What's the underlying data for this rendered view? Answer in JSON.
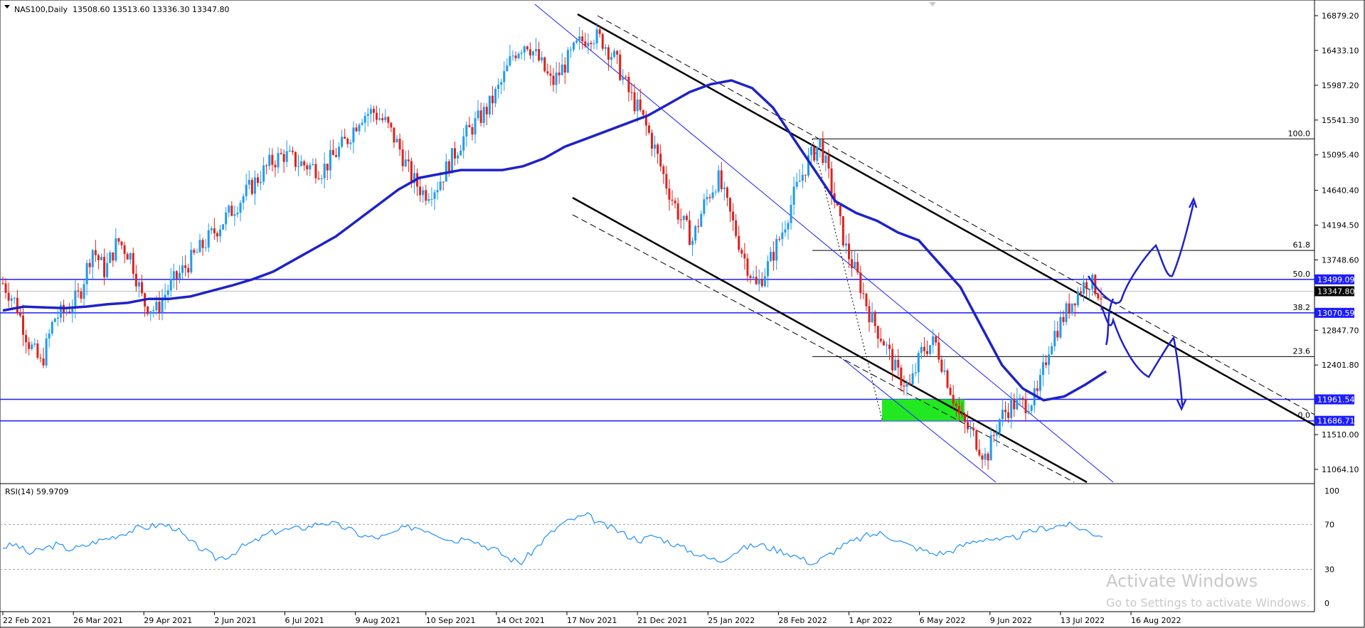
{
  "header": {
    "symbol": "NAS100,Daily",
    "ohlc": "13508.60 13513.60 13336.30 13347.80",
    "indicator": "RSI(14) 59.9709"
  },
  "colors": {
    "bull": "#1e9bf0",
    "bear": "#e0211c",
    "ma": "#1e22c8",
    "hline": "#1c1cff",
    "zone": "#22e822",
    "rsi": "#1e90ff",
    "channel": "#000000",
    "fib": "#000000",
    "drawing": "#1e22c8"
  },
  "watermark": {
    "title": "Activate Windows",
    "subtitle": "Go to Settings to activate Windows."
  },
  "chart_data": {
    "type": "candlestick",
    "price_axis": {
      "ticks": [
        "16879.20",
        "16433.10",
        "15987.20",
        "15541.30",
        "15095.40",
        "14640.40",
        "14194.50",
        "13748.60",
        "12847.70",
        "12401.80",
        "11510.00",
        "11064.10"
      ],
      "ylim": [
        10800,
        17000
      ]
    },
    "time_axis": {
      "ticks": [
        "22 Feb 2021",
        "26 Mar 2021",
        "29 Apr 2021",
        "2 Jun 2021",
        "6 Jul 2021",
        "9 Aug 2021",
        "10 Sep 2021",
        "14 Oct 2021",
        "17 Nov 2021",
        "21 Dec 2021",
        "25 Jan 2022",
        "28 Feb 2022",
        "1 Apr 2022",
        "6 May 2022",
        "9 Jun 2022",
        "13 Jul 2022",
        "16 Aug 2022"
      ]
    },
    "price_tags": [
      {
        "label": "13499.09",
        "value": 13499.09,
        "style": "blue"
      },
      {
        "label": "13347.80",
        "value": 13347.8,
        "style": "black"
      },
      {
        "label": "13070.59",
        "value": 13070.59,
        "style": "blue"
      },
      {
        "label": "11961.54",
        "value": 11961.54,
        "style": "blue"
      },
      {
        "label": "11686.71",
        "value": 11686.71,
        "style": "blue"
      }
    ],
    "fib_levels": [
      {
        "label": "100.0",
        "value": 15300
      },
      {
        "label": "61.8",
        "value": 13870
      },
      {
        "label": "50.0",
        "value": 13499.09
      },
      {
        "label": "38.2",
        "value": 13070.59
      },
      {
        "label": "23.6",
        "value": 12510
      },
      {
        "label": "0.0",
        "value": 11686.71
      }
    ],
    "close_series": [
      13450,
      13200,
      12700,
      12400,
      13000,
      13100,
      13300,
      13900,
      13600,
      14000,
      13800,
      13200,
      13100,
      13400,
      13600,
      13800,
      14000,
      14200,
      14400,
      14600,
      14800,
      15000,
      15100,
      15000,
      14950,
      14900,
      15100,
      15300,
      15600,
      15650,
      15500,
      15200,
      14800,
      14600,
      14700,
      15000,
      15300,
      15500,
      15700,
      16000,
      16400,
      16550,
      16300,
      16000,
      16250,
      16500,
      16650,
      16550,
      16300,
      15900,
      15600,
      15200,
      14700,
      14300,
      14000,
      14500,
      14800,
      14300,
      13800,
      13400,
      13700,
      14100,
      14600,
      15000,
      15250,
      14600,
      13900,
      13500,
      13000,
      12700,
      12300,
      12100,
      12600,
      12700,
      12200,
      11700,
      11500,
      11200,
      11700,
      11900,
      11900,
      12000,
      12700,
      13000,
      13300,
      13500,
      13300
    ],
    "ma_series": [
      13100,
      13150,
      13140,
      13130,
      13150,
      13180,
      13200,
      13250,
      13250,
      13280,
      13350,
      13420,
      13500,
      13600,
      13750,
      13900,
      14050,
      14250,
      14450,
      14650,
      14800,
      14850,
      14900,
      14900,
      14900,
      14950,
      15050,
      15200,
      15300,
      15400,
      15500,
      15600,
      15750,
      15900,
      16000,
      16050,
      15950,
      15700,
      15300,
      14900,
      14500,
      14350,
      14250,
      14100,
      14000,
      13700,
      13400,
      12900,
      12400,
      12100,
      11950,
      12000,
      12150,
      12320
    ],
    "rsi": {
      "levels": [
        100,
        70,
        30,
        0
      ],
      "values": [
        50,
        52,
        44,
        48,
        52,
        48,
        50,
        55,
        58,
        62,
        66,
        68,
        70,
        67,
        55,
        48,
        40,
        42,
        50,
        55,
        62,
        65,
        66,
        68,
        72,
        70,
        66,
        60,
        58,
        60,
        66,
        68,
        65,
        60,
        55,
        60,
        52,
        48,
        40,
        36,
        48,
        60,
        70,
        75,
        78,
        70,
        66,
        60,
        56,
        60,
        55,
        50,
        45,
        40,
        38,
        45,
        50,
        52,
        48,
        45,
        40,
        35,
        42,
        50,
        55,
        60,
        62,
        58,
        52,
        48,
        44,
        45,
        50,
        55,
        58,
        55,
        58,
        62,
        66,
        68,
        70,
        67,
        62,
        60
      ]
    }
  }
}
